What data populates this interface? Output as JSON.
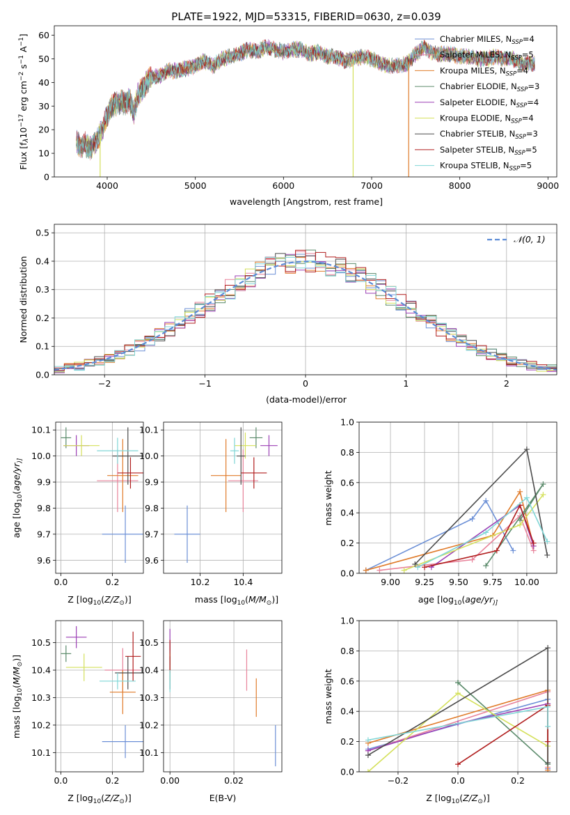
{
  "chart_data": [
    {
      "id": "spectrum",
      "type": "line",
      "title": "PLATE=1922, MJD=53315, FIBERID=0630, z=0.039",
      "xlabel": "wavelength [Angstrom, rest frame]",
      "ylabel": "Flux [f$_\\lambda$10$^{-17}$ erg cm$^{-2}$ s$^{-1}$ A$^{-1}$]",
      "ylabel_parts": [
        "Flux [f",
        "λ",
        "10",
        "−17",
        " erg cm",
        "−2",
        " s",
        "−1",
        " A",
        "−1",
        "]"
      ],
      "xlim": [
        3400,
        9100
      ],
      "ylim": [
        0,
        64
      ],
      "xticks": [
        4000,
        5000,
        6000,
        7000,
        8000,
        9000
      ],
      "yticks": [
        0,
        10,
        20,
        30,
        40,
        50,
        60
      ],
      "legend_position": "upper right",
      "legend_entries": [
        {
          "label": "Chabrier MILES, N",
          "sub": "SSP",
          "tail": "=4",
          "color": "#6b8fd6"
        },
        {
          "label": "Salpeter MILES, N",
          "sub": "SSP",
          "tail": "=5",
          "color": "#e8829a"
        },
        {
          "label": "Kroupa MILES, N",
          "sub": "SSP",
          "tail": "=4",
          "color": "#e07b2a"
        },
        {
          "label": "Chabrier ELODIE, N",
          "sub": "SSP",
          "tail": "=3",
          "color": "#5a8a6a"
        },
        {
          "label": "Salpeter ELODIE, N",
          "sub": "SSP",
          "tail": "=4",
          "color": "#9b3fb5"
        },
        {
          "label": "Kroupa ELODIE, N",
          "sub": "SSP",
          "tail": "=4",
          "color": "#d4e05a"
        },
        {
          "label": "Chabrier STELIB, N",
          "sub": "SSP",
          "tail": "=3",
          "color": "#4a4a4a"
        },
        {
          "label": "Salpeter STELIB, N",
          "sub": "SSP",
          "tail": "=5",
          "color": "#b01c1c"
        },
        {
          "label": "Kroupa STELIB, N",
          "sub": "SSP",
          "tail": "=5",
          "color": "#7fd6d6"
        }
      ],
      "spectrum_shape": {
        "x": [
          3650,
          3700,
          3750,
          3800,
          3850,
          3900,
          3950,
          4000,
          4050,
          4100,
          4150,
          4200,
          4250,
          4300,
          4350,
          4400,
          4450,
          4500,
          4600,
          4700,
          4800,
          4900,
          5000,
          5100,
          5200,
          5300,
          5400,
          5500,
          5600,
          5700,
          5800,
          5900,
          6000,
          6100,
          6200,
          6300,
          6400,
          6500,
          6600,
          6700,
          6800,
          6900,
          7000,
          7100,
          7200,
          7300,
          7400,
          7500,
          7600,
          7700,
          7800,
          7900,
          8000,
          8100,
          8200,
          8300,
          8400,
          8500,
          8600,
          8700,
          8800
        ],
        "y": [
          15,
          13,
          14,
          12,
          14,
          17,
          20,
          26,
          30,
          31,
          32,
          31,
          33,
          27,
          35,
          37,
          40,
          42,
          43,
          45,
          45,
          46,
          47,
          49,
          47,
          50,
          51,
          52,
          54,
          53,
          55,
          54,
          53,
          54,
          54,
          52,
          53,
          51,
          51,
          49,
          50,
          51,
          50,
          48,
          47,
          47,
          48,
          52,
          55,
          52,
          52,
          52,
          51,
          51,
          50,
          50,
          51,
          50,
          50,
          48,
          48
        ],
        "spikes": [
          {
            "x": 3920,
            "color": "#d4e05a"
          },
          {
            "x": 6790,
            "color": "#d4e05a"
          },
          {
            "x": 7420,
            "color": "#e07b2a"
          }
        ]
      }
    },
    {
      "id": "residuals",
      "type": "histogram",
      "xlabel": "(data-model)/error",
      "ylabel": "Normed distribution",
      "xlim": [
        -2.5,
        2.5
      ],
      "ylim": [
        0,
        0.53
      ],
      "xticks": [
        -2,
        -1,
        0,
        1,
        2
      ],
      "yticks": [
        0.0,
        0.1,
        0.2,
        0.3,
        0.4,
        0.5
      ],
      "grid": true,
      "legend_position": "upper right",
      "legend_label": "𝒩(0, 1)",
      "reference_curve": {
        "name": "𝒩(0, 1)",
        "mean": 0,
        "sigma": 1,
        "color": "#5b8bd6",
        "style": "dashed"
      },
      "bin_width": 0.1,
      "series_colors": [
        "#6b8fd6",
        "#e8829a",
        "#e07b2a",
        "#5a8a6a",
        "#9b3fb5",
        "#d4e05a",
        "#4a4a4a",
        "#b01c1c",
        "#7fd6d6"
      ]
    },
    {
      "id": "age_vs_Z",
      "type": "errorbar",
      "xlabel": "Z [log$_{10}$(Z/Z$_\\odot$)]",
      "ylabel": "age  [log$_{10}$(age/yr)]",
      "xlabel_parts": [
        "Z [log",
        "10",
        "(",
        "Z/Z",
        "⊙",
        ")]"
      ],
      "ylabel_parts": [
        "age  [log",
        "10",
        "(",
        "age/yr",
        ")]"
      ],
      "xlim": [
        -0.02,
        0.32
      ],
      "ylim": [
        9.55,
        10.13
      ],
      "xticks": [
        0.0,
        0.2
      ],
      "yticks": [
        9.6,
        9.7,
        9.8,
        9.9,
        10.0,
        10.1
      ],
      "grid": true,
      "points": [
        {
          "color": "#6b8fd6",
          "x": 0.25,
          "y": 9.7,
          "xerr": 0.09,
          "yerr": 0.11
        },
        {
          "color": "#e8829a",
          "x": 0.22,
          "y": 9.905,
          "xerr": 0.08,
          "yerr": 0.12
        },
        {
          "color": "#e07b2a",
          "x": 0.24,
          "y": 9.925,
          "xerr": 0.06,
          "yerr": 0.14
        },
        {
          "color": "#5a8a6a",
          "x": 0.02,
          "y": 10.07,
          "xerr": 0.02,
          "yerr": 0.04
        },
        {
          "color": "#9b3fb5",
          "x": 0.06,
          "y": 10.04,
          "xerr": 0.05,
          "yerr": 0.04
        },
        {
          "color": "#d4e05a",
          "x": 0.08,
          "y": 10.04,
          "xerr": 0.07,
          "yerr": 0.04
        },
        {
          "color": "#4a4a4a",
          "x": 0.26,
          "y": 10.0,
          "xerr": 0.06,
          "yerr": 0.11
        },
        {
          "color": "#b01c1c",
          "x": 0.27,
          "y": 9.935,
          "xerr": 0.05,
          "yerr": 0.06
        },
        {
          "color": "#7fd6d6",
          "x": 0.22,
          "y": 10.02,
          "xerr": 0.08,
          "yerr": 0.05
        }
      ]
    },
    {
      "id": "age_vs_mass",
      "type": "errorbar",
      "xlabel": "mass [log$_{10}$(M/M$_\\odot$)]",
      "xlabel_parts": [
        "mass [log",
        "10",
        "(",
        "M/M",
        "⊙",
        ")]"
      ],
      "xlim": [
        10.03,
        10.58
      ],
      "ylim": [
        9.55,
        10.13
      ],
      "xticks": [
        10.2,
        10.4
      ],
      "yticks": [
        9.6,
        9.7,
        9.8,
        9.9,
        10.0,
        10.1
      ],
      "grid": true,
      "points": [
        {
          "color": "#6b8fd6",
          "x": 10.14,
          "y": 9.7,
          "xerr": 0.06,
          "yerr": 0.11
        },
        {
          "color": "#e8829a",
          "x": 10.4,
          "y": 9.905,
          "xerr": 0.07,
          "yerr": 0.12
        },
        {
          "color": "#e07b2a",
          "x": 10.32,
          "y": 9.925,
          "xerr": 0.07,
          "yerr": 0.14
        },
        {
          "color": "#5a8a6a",
          "x": 10.46,
          "y": 10.07,
          "xerr": 0.03,
          "yerr": 0.04
        },
        {
          "color": "#9b3fb5",
          "x": 10.52,
          "y": 10.04,
          "xerr": 0.04,
          "yerr": 0.04
        },
        {
          "color": "#d4e05a",
          "x": 10.41,
          "y": 10.04,
          "xerr": 0.05,
          "yerr": 0.05
        },
        {
          "color": "#4a4a4a",
          "x": 10.39,
          "y": 10.0,
          "xerr": 0.02,
          "yerr": 0.11
        },
        {
          "color": "#b01c1c",
          "x": 10.45,
          "y": 9.935,
          "xerr": 0.06,
          "yerr": 0.06
        },
        {
          "color": "#7fd6d6",
          "x": 10.36,
          "y": 10.02,
          "xerr": 0.02,
          "yerr": 0.05
        }
      ]
    },
    {
      "id": "massweight_vs_age",
      "type": "line",
      "xlabel": "age  [log$_{10}$(age/yr)]",
      "ylabel": "mass weight",
      "xlabel_parts": [
        "age  [log",
        "10",
        "(",
        "age/yr",
        ")]"
      ],
      "xlim": [
        8.77,
        10.22
      ],
      "ylim": [
        0,
        1
      ],
      "xticks": [
        9.0,
        9.25,
        9.5,
        9.75,
        10.0
      ],
      "yticks": [
        0.0,
        0.2,
        0.4,
        0.6,
        0.8,
        1.0
      ],
      "grid": true,
      "series": [
        {
          "color": "#6b8fd6",
          "x": [
            8.82,
            9.6,
            9.7,
            9.9
          ],
          "y": [
            0.02,
            0.36,
            0.48,
            0.15
          ]
        },
        {
          "color": "#e8829a",
          "x": [
            8.92,
            9.6,
            9.95,
            10.05
          ],
          "y": [
            0.02,
            0.09,
            0.38,
            0.15
          ]
        },
        {
          "color": "#e07b2a",
          "x": [
            8.82,
            9.75,
            9.95,
            10.05
          ],
          "y": [
            0.02,
            0.25,
            0.54,
            0.18
          ]
        },
        {
          "color": "#5a8a6a",
          "x": [
            9.7,
            10.12,
            9.95
          ],
          "y": [
            0.05,
            0.59,
            0.35
          ]
        },
        {
          "color": "#9b3fb5",
          "x": [
            9.3,
            9.95,
            10.05
          ],
          "y": [
            0.04,
            0.45,
            0.18
          ]
        },
        {
          "color": "#d4e05a",
          "x": [
            9.1,
            9.95,
            10.12
          ],
          "y": [
            0.02,
            0.32,
            0.52
          ]
        },
        {
          "color": "#4a4a4a",
          "x": [
            9.18,
            10.0,
            10.15
          ],
          "y": [
            0.06,
            0.82,
            0.12
          ]
        },
        {
          "color": "#b01c1c",
          "x": [
            9.25,
            9.78,
            9.95,
            10.05
          ],
          "y": [
            0.04,
            0.15,
            0.45,
            0.2
          ]
        },
        {
          "color": "#7fd6d6",
          "x": [
            9.2,
            9.7,
            10.0,
            10.15
          ],
          "y": [
            0.04,
            0.27,
            0.5,
            0.21
          ]
        }
      ]
    },
    {
      "id": "mass_vs_Z",
      "type": "errorbar",
      "xlabel": "Z [log$_{10}$(Z/Z$_\\odot$)]",
      "ylabel": "mass [log$_{10}$(M/M$_\\odot$)]",
      "xlabel_parts": [
        "Z [log",
        "10",
        "(",
        "Z/Z",
        "⊙",
        ")]"
      ],
      "ylabel_parts": [
        "mass [log",
        "10",
        "(",
        "M/M",
        "⊙",
        ")]"
      ],
      "xlim": [
        -0.02,
        0.32
      ],
      "ylim": [
        10.03,
        10.58
      ],
      "xticks": [
        0.0,
        0.2
      ],
      "yticks": [
        10.1,
        10.2,
        10.3,
        10.4,
        10.5
      ],
      "grid": true,
      "points": [
        {
          "color": "#6b8fd6",
          "x": 0.25,
          "y": 10.14,
          "xerr": 0.09,
          "yerr": 0.06
        },
        {
          "color": "#e8829a",
          "x": 0.24,
          "y": 10.4,
          "xerr": 0.07,
          "yerr": 0.08
        },
        {
          "color": "#e07b2a",
          "x": 0.24,
          "y": 10.32,
          "xerr": 0.05,
          "yerr": 0.08
        },
        {
          "color": "#5a8a6a",
          "x": 0.02,
          "y": 10.46,
          "xerr": 0.02,
          "yerr": 0.03
        },
        {
          "color": "#9b3fb5",
          "x": 0.06,
          "y": 10.52,
          "xerr": 0.04,
          "yerr": 0.04
        },
        {
          "color": "#d4e05a",
          "x": 0.09,
          "y": 10.41,
          "xerr": 0.07,
          "yerr": 0.05
        },
        {
          "color": "#4a4a4a",
          "x": 0.26,
          "y": 10.39,
          "xerr": 0.05,
          "yerr": 0.06
        },
        {
          "color": "#b01c1c",
          "x": 0.28,
          "y": 10.45,
          "xerr": 0.03,
          "yerr": 0.09
        },
        {
          "color": "#7fd6d6",
          "x": 0.22,
          "y": 10.36,
          "xerr": 0.07,
          "yerr": 0.03
        }
      ]
    },
    {
      "id": "mass_vs_ebv",
      "type": "errorbar",
      "xlabel": "E(B-V)",
      "xlim": [
        -0.002,
        0.035
      ],
      "ylim": [
        10.03,
        10.58
      ],
      "xticks": [
        0.0,
        0.02
      ],
      "yticks": [
        10.1,
        10.2,
        10.3,
        10.4,
        10.5
      ],
      "grid": true,
      "points": [
        {
          "color": "#6b8fd6",
          "x": 0.033,
          "y": 10.125,
          "xerr": 0,
          "yerr": 0.075
        },
        {
          "color": "#e8829a",
          "x": 0.024,
          "y": 10.4,
          "xerr": 0,
          "yerr": 0.075
        },
        {
          "color": "#e07b2a",
          "x": 0.027,
          "y": 10.3,
          "xerr": 0,
          "yerr": 0.07
        },
        {
          "color": "#5a8a6a",
          "x": 0.0,
          "y": 10.46,
          "xerr": 0,
          "yerr": 0.04
        },
        {
          "color": "#9b3fb5",
          "x": 0.0,
          "y": 10.51,
          "xerr": 0,
          "yerr": 0.04
        },
        {
          "color": "#d4e05a",
          "x": 0.0,
          "y": 10.41,
          "xerr": 0,
          "yerr": 0.05
        },
        {
          "color": "#4a4a4a",
          "x": 0.0,
          "y": 10.39,
          "xerr": 0,
          "yerr": 0.06
        },
        {
          "color": "#b01c1c",
          "x": 0.0,
          "y": 10.45,
          "xerr": 0,
          "yerr": 0.06
        },
        {
          "color": "#7fd6d6",
          "x": 0.0,
          "y": 10.36,
          "xerr": 0,
          "yerr": 0.04
        }
      ]
    },
    {
      "id": "massweight_vs_Z",
      "type": "line",
      "xlabel": "Z [log$_{10}$(Z/Z$_\\odot$)]",
      "ylabel": "mass weight",
      "xlabel_parts": [
        "Z [log",
        "10",
        "(",
        "Z/Z",
        "⊙",
        ")]"
      ],
      "xlim": [
        -0.33,
        0.33
      ],
      "ylim": [
        0,
        1
      ],
      "xticks": [
        -0.2,
        0.0,
        0.2
      ],
      "yticks": [
        0.0,
        0.2,
        0.4,
        0.6,
        0.8,
        1.0
      ],
      "grid": true,
      "series": [
        {
          "color": "#6b8fd6",
          "x": [
            -0.3,
            0.3,
            0.3
          ],
          "y": [
            0.15,
            0.48,
            0.02
          ]
        },
        {
          "color": "#e8829a",
          "x": [
            -0.3,
            0.3,
            0.3
          ],
          "y": [
            0.14,
            0.53,
            0.03
          ]
        },
        {
          "color": "#e07b2a",
          "x": [
            -0.3,
            0.3,
            0.3
          ],
          "y": [
            0.19,
            0.54,
            0.01
          ]
        },
        {
          "color": "#5a8a6a",
          "x": [
            0.0,
            0.3,
            0.0
          ],
          "y": [
            0.59,
            0.05,
            0.59
          ]
        },
        {
          "color": "#9b3fb5",
          "x": [
            -0.3,
            0.0,
            0.3
          ],
          "y": [
            0.14,
            0.32,
            0.45
          ]
        },
        {
          "color": "#d4e05a",
          "x": [
            -0.3,
            0.0,
            0.3
          ],
          "y": [
            0.0,
            0.52,
            0.17
          ]
        },
        {
          "color": "#4a4a4a",
          "x": [
            -0.3,
            0.3,
            0.3
          ],
          "y": [
            0.11,
            0.82,
            0.06
          ]
        },
        {
          "color": "#b01c1c",
          "x": [
            0.0,
            0.3,
            0.3
          ],
          "y": [
            0.05,
            0.44,
            0.2
          ]
        },
        {
          "color": "#7fd6d6",
          "x": [
            -0.3,
            0.3,
            0.3
          ],
          "y": [
            0.21,
            0.43,
            0.3
          ]
        }
      ]
    }
  ]
}
